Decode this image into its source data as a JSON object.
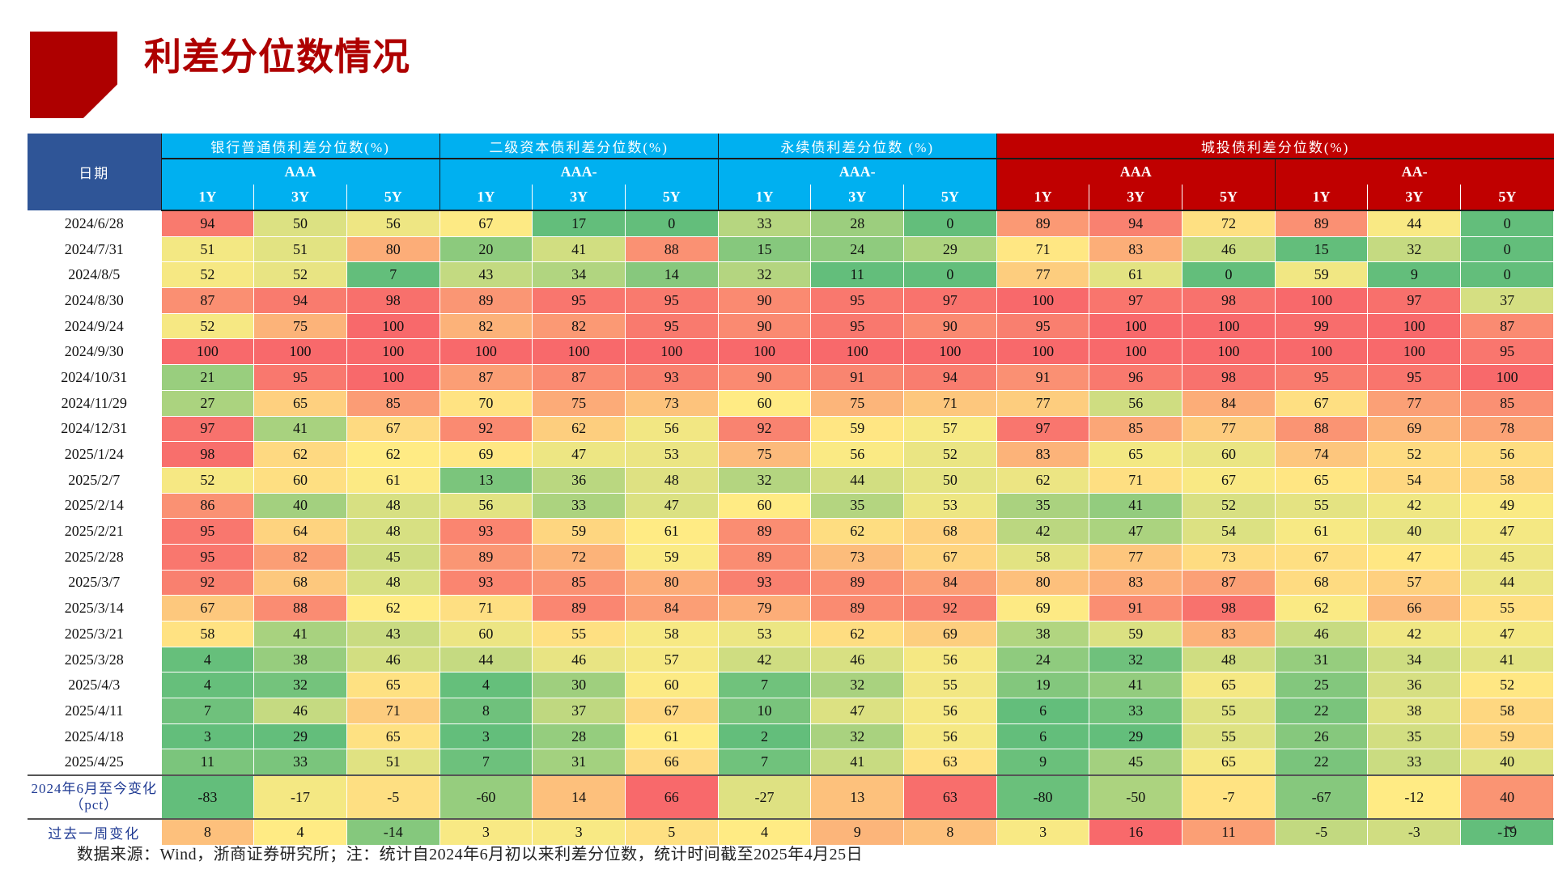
{
  "page": {
    "title": "利差分位数情况",
    "footer": "数据来源：Wind，浙商证券研究所；注：统计自2024年6月初以来利差分位数，统计时间截至2025年4月25日"
  },
  "colors": {
    "title_red": "#AE0000",
    "date_header_navy": "#2F5597",
    "bank_header_blue": "#00B0F0",
    "chengtou_header_red": "#C00000",
    "scale_low_green": "#63BE7B",
    "scale_mid_yellow": "#FFEB84",
    "scale_high_red": "#F8696B"
  },
  "table": {
    "date_header": "日期",
    "groups": [
      {
        "label": "银行普通债利差分位数(%)",
        "theme": "blue",
        "ratings": [
          {
            "label": "AAA",
            "tenors": [
              "1Y",
              "3Y",
              "5Y"
            ]
          }
        ]
      },
      {
        "label": "二级资本债利差分位数(%)",
        "theme": "blue",
        "ratings": [
          {
            "label": "AAA-",
            "tenors": [
              "1Y",
              "3Y",
              "5Y"
            ]
          }
        ]
      },
      {
        "label": "永续债利差分位数 (%)",
        "theme": "blue",
        "ratings": [
          {
            "label": "AAA-",
            "tenors": [
              "1Y",
              "3Y",
              "5Y"
            ]
          }
        ]
      },
      {
        "label": "城投债利差分位数(%)",
        "theme": "red",
        "ratings": [
          {
            "label": "AAA",
            "tenors": [
              "1Y",
              "3Y",
              "5Y"
            ]
          },
          {
            "label": "AA-",
            "tenors": [
              "1Y",
              "3Y",
              "5Y"
            ]
          }
        ]
      }
    ],
    "rows": [
      {
        "date": "2024/6/28",
        "values": [
          94,
          50,
          56,
          67,
          17,
          0,
          33,
          28,
          0,
          89,
          94,
          72,
          89,
          44,
          0
        ]
      },
      {
        "date": "2024/7/31",
        "values": [
          51,
          51,
          80,
          20,
          41,
          88,
          15,
          24,
          29,
          71,
          83,
          46,
          15,
          32,
          0
        ]
      },
      {
        "date": "2024/8/5",
        "values": [
          52,
          52,
          7,
          43,
          34,
          14,
          32,
          11,
          0,
          77,
          61,
          0,
          59,
          9,
          0
        ]
      },
      {
        "date": "2024/8/30",
        "values": [
          87,
          94,
          98,
          89,
          95,
          95,
          90,
          95,
          97,
          100,
          97,
          98,
          100,
          97,
          37
        ]
      },
      {
        "date": "2024/9/24",
        "values": [
          52,
          75,
          100,
          82,
          82,
          95,
          90,
          95,
          90,
          95,
          100,
          100,
          99,
          100,
          87
        ]
      },
      {
        "date": "2024/9/30",
        "values": [
          100,
          100,
          100,
          100,
          100,
          100,
          100,
          100,
          100,
          100,
          100,
          100,
          100,
          100,
          95
        ]
      },
      {
        "date": "2024/10/31",
        "values": [
          21,
          95,
          100,
          87,
          87,
          93,
          90,
          91,
          94,
          91,
          96,
          98,
          95,
          95,
          100
        ]
      },
      {
        "date": "2024/11/29",
        "values": [
          27,
          65,
          85,
          70,
          75,
          73,
          60,
          75,
          71,
          77,
          56,
          84,
          67,
          77,
          85
        ]
      },
      {
        "date": "2024/12/31",
        "values": [
          97,
          41,
          67,
          92,
          62,
          56,
          92,
          59,
          57,
          97,
          85,
          77,
          88,
          69,
          78
        ]
      },
      {
        "date": "2025/1/24",
        "values": [
          98,
          62,
          62,
          69,
          47,
          53,
          75,
          56,
          52,
          83,
          65,
          60,
          74,
          52,
          56
        ]
      },
      {
        "date": "2025/2/7",
        "values": [
          52,
          60,
          61,
          13,
          36,
          48,
          32,
          44,
          50,
          62,
          71,
          67,
          65,
          54,
          58
        ]
      },
      {
        "date": "2025/2/14",
        "values": [
          86,
          40,
          48,
          56,
          33,
          47,
          60,
          35,
          53,
          35,
          41,
          52,
          55,
          42,
          49
        ]
      },
      {
        "date": "2025/2/21",
        "values": [
          95,
          64,
          48,
          93,
          59,
          61,
          89,
          62,
          68,
          42,
          47,
          54,
          61,
          40,
          47
        ]
      },
      {
        "date": "2025/2/28",
        "values": [
          95,
          82,
          45,
          89,
          72,
          59,
          89,
          73,
          67,
          58,
          77,
          73,
          67,
          47,
          45
        ]
      },
      {
        "date": "2025/3/7",
        "values": [
          92,
          68,
          48,
          93,
          85,
          80,
          93,
          89,
          84,
          80,
          83,
          87,
          68,
          57,
          44
        ]
      },
      {
        "date": "2025/3/14",
        "values": [
          67,
          88,
          62,
          71,
          89,
          84,
          79,
          89,
          92,
          69,
          91,
          98,
          62,
          66,
          55
        ]
      },
      {
        "date": "2025/3/21",
        "values": [
          58,
          41,
          43,
          60,
          55,
          58,
          53,
          62,
          69,
          38,
          59,
          83,
          46,
          42,
          47
        ]
      },
      {
        "date": "2025/3/28",
        "values": [
          4,
          38,
          46,
          44,
          46,
          57,
          42,
          46,
          56,
          24,
          32,
          48,
          31,
          34,
          41
        ]
      },
      {
        "date": "2025/4/3",
        "values": [
          4,
          32,
          65,
          4,
          30,
          60,
          7,
          32,
          55,
          19,
          41,
          65,
          25,
          36,
          52
        ]
      },
      {
        "date": "2025/4/11",
        "values": [
          7,
          46,
          71,
          8,
          37,
          67,
          10,
          47,
          56,
          6,
          33,
          55,
          22,
          38,
          58
        ]
      },
      {
        "date": "2025/4/18",
        "values": [
          3,
          29,
          65,
          3,
          28,
          61,
          2,
          32,
          56,
          6,
          29,
          55,
          26,
          35,
          59
        ]
      },
      {
        "date": "2025/4/25",
        "values": [
          11,
          33,
          51,
          7,
          31,
          66,
          7,
          41,
          63,
          9,
          45,
          65,
          22,
          33,
          40
        ]
      }
    ],
    "change_since_june": {
      "label_line1": "2024年6月至今变化",
      "label_line2": "（pct）",
      "values": [
        -83,
        -17,
        -5,
        -60,
        14,
        66,
        -27,
        13,
        63,
        -80,
        -50,
        -7,
        -67,
        -12,
        40
      ]
    },
    "change_past_week": {
      "label": "过去一周变化",
      "values": [
        8,
        4,
        -14,
        3,
        3,
        5,
        4,
        9,
        8,
        3,
        16,
        11,
        -5,
        -3,
        -19
      ]
    }
  }
}
